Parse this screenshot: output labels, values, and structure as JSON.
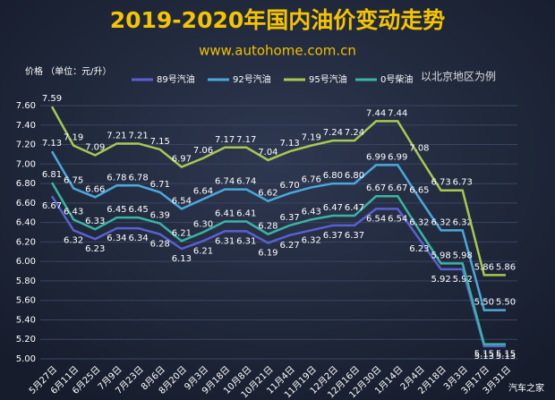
{
  "chart_data": {
    "type": "line",
    "title": "2019-2020年国内油价变动走势",
    "subtitle": "www.autohome.com.cn",
    "y_label": "价格 （单位：元/升）",
    "annotation": "以北京地区为例",
    "watermark": "汽车之家",
    "categories": [
      "5月27日",
      "6月11日",
      "6月25日",
      "7月9日",
      "7月23日",
      "8月6日",
      "8月20日",
      "9月3日",
      "9月18日",
      "10月8日",
      "10月21日",
      "11月4日",
      "11月19日",
      "12月2日",
      "12月16日",
      "12月30日",
      "1月14日",
      "2月4日",
      "2月18日",
      "3月3日",
      "3月17日",
      "3月31日"
    ],
    "series": [
      {
        "name": "89号汽油",
        "color": "#5a60d0",
        "values": [
          6.67,
          6.32,
          6.23,
          6.34,
          6.34,
          6.28,
          6.13,
          6.21,
          6.31,
          6.31,
          6.19,
          6.27,
          6.32,
          6.37,
          6.37,
          6.54,
          6.54,
          6.23,
          5.92,
          5.92,
          5.13,
          5.13
        ],
        "value_labels": [
          "6.67",
          "6.32",
          "6.23",
          "6.34",
          "6.34",
          "6.28",
          "6.13",
          "6.21",
          "6.31",
          "6.31",
          "6.19",
          "6.27",
          "6.32",
          "6.37",
          "6.37",
          "6.54",
          "6.54",
          "6.23",
          "5.92",
          "5.92",
          "5.13",
          "5.13"
        ]
      },
      {
        "name": "92号汽油",
        "color": "#4aa8dc",
        "values": [
          7.13,
          6.75,
          6.66,
          6.78,
          6.78,
          6.71,
          6.54,
          6.64,
          6.74,
          6.74,
          6.62,
          6.7,
          6.76,
          6.8,
          6.8,
          6.99,
          6.99,
          6.65,
          6.32,
          6.32,
          5.5,
          5.5
        ],
        "value_labels": [
          "7.13",
          "6.75",
          "6.66",
          "6.78",
          "6.78",
          "6.71",
          "6.54",
          "6.64",
          "6.74",
          "6.74",
          "6.62",
          "6.70",
          "6.76",
          "6.80",
          "6.80",
          "6.99",
          "6.99",
          "6.65",
          "6.32",
          "6.32",
          "5.50",
          "5.50"
        ]
      },
      {
        "name": "95号汽油",
        "color": "#a8c850",
        "values": [
          7.59,
          7.19,
          7.09,
          7.21,
          7.21,
          7.15,
          6.97,
          7.06,
          7.17,
          7.17,
          7.04,
          7.13,
          7.19,
          7.24,
          7.24,
          7.44,
          7.44,
          7.08,
          6.73,
          6.73,
          5.86,
          5.86
        ],
        "value_labels": [
          "7.59",
          "7.19",
          "7.09",
          "7.21",
          "7.21",
          "7.15",
          "6.97",
          "7.06",
          "7.17",
          "7.17",
          "7.04",
          "7.13",
          "7.19",
          "7.24",
          "7.24",
          "7.44",
          "7.44",
          "7.08",
          "6.73",
          "6.73",
          "5.86",
          "5.86"
        ]
      },
      {
        "name": "0号柴油",
        "color": "#3ab4a4",
        "values": [
          6.81,
          6.43,
          6.33,
          6.45,
          6.45,
          6.39,
          6.21,
          6.3,
          6.41,
          6.41,
          6.28,
          6.37,
          6.43,
          6.47,
          6.47,
          6.67,
          6.67,
          6.32,
          5.98,
          5.98,
          5.15,
          5.15
        ],
        "value_labels": [
          "6.81",
          "6.43",
          "6.33",
          "6.45",
          "6.45",
          "6.39",
          "6.21",
          "6.30",
          "6.41",
          "6.41",
          "6.28",
          "6.37",
          "6.43",
          "6.47",
          "6.47",
          "6.67",
          "6.67",
          "6.32",
          "5.98",
          "5.98",
          "5.15",
          "5.15"
        ]
      }
    ],
    "ylim": [
      5.0,
      7.6
    ],
    "yticks": [
      {
        "value": 5.0,
        "label": "5.00"
      },
      {
        "value": 5.2,
        "label": "5.20"
      },
      {
        "value": 5.4,
        "label": "5.40"
      },
      {
        "value": 5.6,
        "label": "5.60"
      },
      {
        "value": 5.8,
        "label": "5.80"
      },
      {
        "value": 6.0,
        "label": "6.00"
      },
      {
        "value": 6.2,
        "label": "6.20"
      },
      {
        "value": 6.4,
        "label": "6.40"
      },
      {
        "value": 6.6,
        "label": "6.60"
      },
      {
        "value": 6.8,
        "label": "6.80"
      },
      {
        "value": 7.0,
        "label": "7.00"
      },
      {
        "value": 7.2,
        "label": "7.20"
      },
      {
        "value": 7.4,
        "label": "7.40"
      },
      {
        "value": 7.6,
        "label": "7.60"
      }
    ],
    "grid": true,
    "legend": "top"
  }
}
